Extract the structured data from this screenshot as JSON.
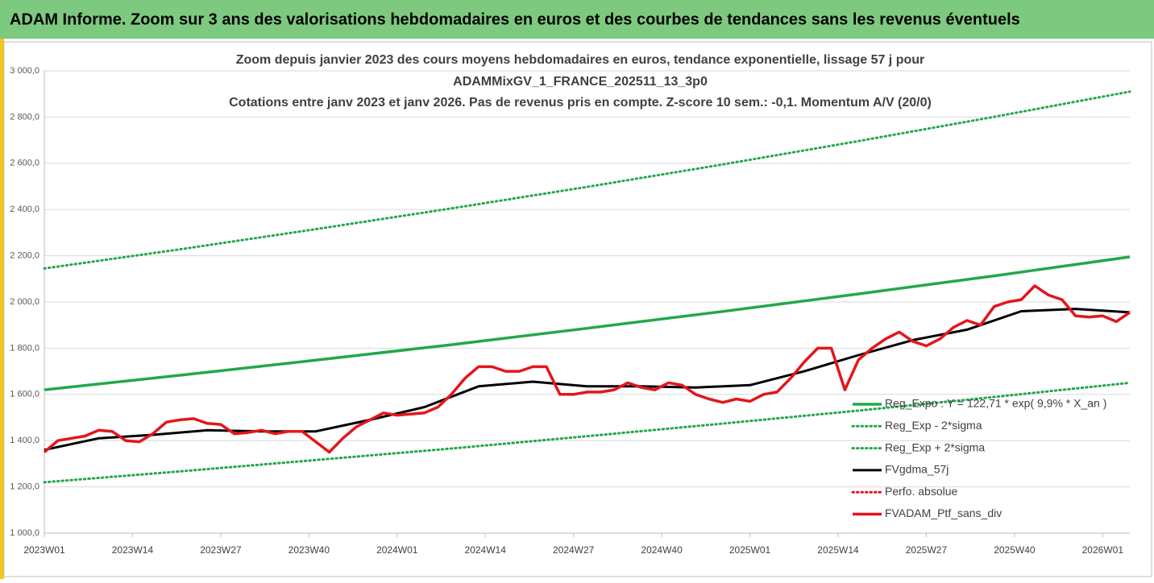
{
  "chart_data": {
    "type": "line",
    "header": "ADAM Informe. Zoom sur 3 ans des valorisations hebdomadaires en euros et des courbes de tendances sans les revenus éventuels",
    "title": [
      "Zoom depuis janvier 2023 des cours moyens hebdomadaires  en euros, tendance exponentielle, lissage 57 j pour",
      "ADAMMixGV_1_FRANCE_202511_13_3p0",
      "Cotations entre janv 2023 et janv 2026. Pas de revenus pris en compte. Z-score 10 sem.: -0,1. Momentum A/V (20/0)"
    ],
    "xlim": [
      0,
      160
    ],
    "xticks": [
      {
        "value": 0,
        "label": "2023W01"
      },
      {
        "value": 13,
        "label": "2023W14"
      },
      {
        "value": 26,
        "label": "2023W27"
      },
      {
        "value": 39,
        "label": "2023W40"
      },
      {
        "value": 52,
        "label": "2024W01"
      },
      {
        "value": 65,
        "label": "2024W14"
      },
      {
        "value": 78,
        "label": "2024W27"
      },
      {
        "value": 91,
        "label": "2024W40"
      },
      {
        "value": 104,
        "label": "2025W01"
      },
      {
        "value": 117,
        "label": "2025W14"
      },
      {
        "value": 130,
        "label": "2025W27"
      },
      {
        "value": 143,
        "label": "2025W40"
      },
      {
        "value": 156,
        "label": "2026W01"
      }
    ],
    "ylim": [
      1000,
      3000
    ],
    "yticks": [
      {
        "value": 1000,
        "label": "1 000,0"
      },
      {
        "value": 1200,
        "label": "1 200,0"
      },
      {
        "value": 1400,
        "label": "1 400,0"
      },
      {
        "value": 1600,
        "label": "1 600,0"
      },
      {
        "value": 1800,
        "label": "1 800,0"
      },
      {
        "value": 2000,
        "label": "2 000,0"
      },
      {
        "value": 2200,
        "label": "2 200,0"
      },
      {
        "value": 2400,
        "label": "2 400,0"
      },
      {
        "value": 2600,
        "label": "2 600,0"
      },
      {
        "value": 2800,
        "label": "2 800,0"
      },
      {
        "value": 3000,
        "label": "3 000,0"
      }
    ],
    "grid": true,
    "legend": "lower right",
    "series": [
      {
        "name": "Reg_Expo : Y = 122,71 * exp( 9,9% *  X_an )",
        "color": "#22a84a",
        "style": "solid",
        "x": [
          0,
          20,
          40,
          60,
          80,
          100,
          120,
          140,
          160
        ],
        "values": [
          1620,
          1683,
          1748,
          1815,
          1886,
          1959,
          2035,
          2113,
          2195
        ]
      },
      {
        "name": "Reg_Exp - 2*sigma",
        "color": "#22a84a",
        "style": "dotted",
        "x": [
          0,
          20,
          40,
          60,
          80,
          100,
          120,
          140,
          160
        ],
        "values": [
          1220,
          1267,
          1316,
          1366,
          1419,
          1474,
          1530,
          1589,
          1650
        ]
      },
      {
        "name": "Reg_Exp + 2*sigma",
        "color": "#22a84a",
        "style": "dotted",
        "x": [
          0,
          20,
          40,
          60,
          80,
          100,
          120,
          140,
          160
        ],
        "values": [
          2145,
          2228,
          2315,
          2405,
          2498,
          2595,
          2696,
          2801,
          2910
        ]
      },
      {
        "name": "FVgdma_57j",
        "color": "#000000",
        "style": "solid",
        "x": [
          0,
          8,
          16,
          24,
          32,
          40,
          48,
          56,
          64,
          72,
          80,
          88,
          96,
          104,
          112,
          120,
          128,
          136,
          144,
          152,
          160
        ],
        "values": [
          1360,
          1410,
          1425,
          1445,
          1440,
          1440,
          1490,
          1545,
          1635,
          1655,
          1635,
          1635,
          1630,
          1640,
          1700,
          1770,
          1835,
          1880,
          1960,
          1970,
          1955
        ]
      },
      {
        "name": "Perfo. absolue",
        "color": "#e3161b",
        "style": "dotted",
        "x": [],
        "values": []
      },
      {
        "name": "FVADAM_Ptf_sans_div",
        "color": "#e3161b",
        "style": "solid",
        "x": [
          0,
          2,
          4,
          6,
          8,
          10,
          12,
          14,
          16,
          18,
          20,
          22,
          24,
          26,
          28,
          30,
          32,
          34,
          36,
          38,
          40,
          42,
          44,
          46,
          48,
          50,
          52,
          54,
          56,
          58,
          60,
          62,
          64,
          66,
          68,
          70,
          72,
          74,
          76,
          78,
          80,
          82,
          84,
          86,
          88,
          90,
          92,
          94,
          96,
          98,
          100,
          102,
          104,
          106,
          108,
          110,
          112,
          114,
          116,
          118,
          120,
          122,
          124,
          126,
          128,
          130,
          132,
          134,
          136,
          138,
          140,
          142,
          144,
          146,
          148,
          150,
          152,
          154,
          156,
          158,
          160
        ],
        "values": [
          1350,
          1400,
          1410,
          1420,
          1445,
          1440,
          1400,
          1395,
          1430,
          1480,
          1490,
          1495,
          1475,
          1470,
          1430,
          1435,
          1445,
          1430,
          1440,
          1440,
          1395,
          1350,
          1410,
          1460,
          1490,
          1520,
          1510,
          1515,
          1520,
          1545,
          1600,
          1670,
          1720,
          1720,
          1700,
          1700,
          1720,
          1720,
          1600,
          1600,
          1610,
          1610,
          1620,
          1650,
          1630,
          1620,
          1650,
          1640,
          1600,
          1580,
          1565,
          1580,
          1570,
          1600,
          1610,
          1670,
          1740,
          1800,
          1800,
          1620,
          1750,
          1800,
          1840,
          1870,
          1830,
          1810,
          1840,
          1890,
          1920,
          1900,
          1980,
          2000,
          2010,
          2070,
          2030,
          2010,
          1940,
          1935,
          1940,
          1915,
          1955
        ]
      }
    ]
  }
}
